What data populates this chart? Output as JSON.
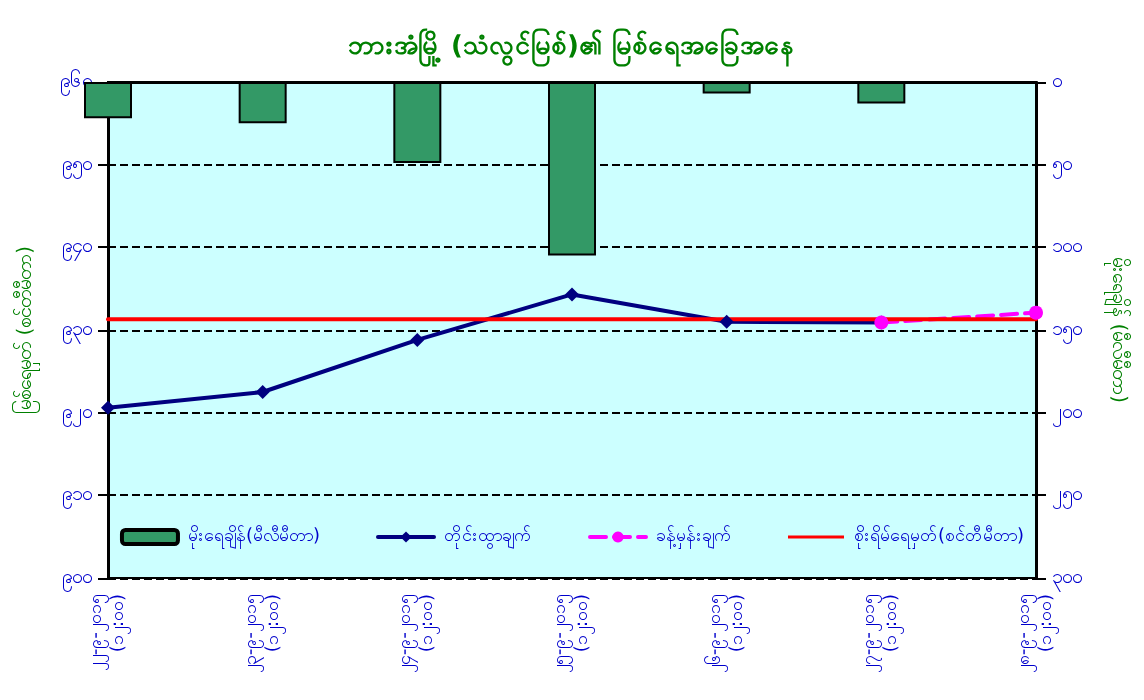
{
  "chart_data": {
    "type": "bar",
    "title": "ဘားအံမြို့ (သံလွင်မြစ်)၏ မြစ်ရေအခြေအနေ",
    "ylabel": "မြစ်ရေမှတ် (စင်တီမီတာ)",
    "y2label": "မိုးရေချိန် (မီလီမီတာ)",
    "categories": [
      "၂၂-၉-၂၀၁၅\n(၁၂:၀၀)",
      "၂၃-၉-၂၀၁၅\n(၁၂:၀၀)",
      "၂၄-၉-၂၀၁၅\n(၁၂:၀၀)",
      "၂၅-၉-၂၀၁၅\n(၁၂:၀၀)",
      "၂၆-၉-၂၀၁၅\n(၁၂:၀၀)",
      "၂၇-၉-၂၀၁၅\n(၁၂:၀၀)",
      "၂၈-၉-၂၀၁၅\n(၁၂:၀၀)"
    ],
    "series": [
      {
        "name": "မိုးရေချိန်(မီလီမီတာ)",
        "axis": "y2",
        "color": "#339966",
        "values": [
          22,
          25,
          49,
          105,
          7,
          13,
          null
        ]
      },
      {
        "name": "တိုင်းထွာချက်",
        "type": "line",
        "color": "#000080",
        "marker": "diamond",
        "line_style": "solid",
        "values": [
          920.6,
          922.5,
          928.8,
          934.3,
          931,
          930.9,
          null
        ]
      },
      {
        "name": "ခန့်မှန်းချက်",
        "type": "line",
        "color": "#ff00ff",
        "marker": "circle",
        "line_style": "dashed",
        "values": [
          null,
          null,
          null,
          null,
          null,
          930.9,
          932.1
        ]
      },
      {
        "name": "စိုးရိမ်ရေမှတ်(စင်တီမီတာ)",
        "type": "line",
        "color": "#ff0000",
        "marker": "none",
        "line_style": "solid",
        "values": [
          931.3,
          931.3,
          931.3,
          931.3,
          931.3,
          931.3,
          931.3
        ]
      }
    ],
    "ylim": [
      900,
      960
    ],
    "yticks": [
      {
        "value": 900,
        "label": "၉၀၀"
      },
      {
        "value": 910,
        "label": "၉၁၀"
      },
      {
        "value": 920,
        "label": "၉၂၀"
      },
      {
        "value": 930,
        "label": "၉၃၀"
      },
      {
        "value": 940,
        "label": "၉၄၀"
      },
      {
        "value": 950,
        "label": "၉၅၀"
      },
      {
        "value": 960,
        "label": "၉၆၀"
      }
    ],
    "y2lim": [
      300,
      0
    ],
    "y2ticks": [
      {
        "value": 0,
        "label": "၀"
      },
      {
        "value": 50,
        "label": "၅၀"
      },
      {
        "value": 100,
        "label": "၁၀၀"
      },
      {
        "value": 150,
        "label": "၁၅၀"
      },
      {
        "value": 200,
        "label": "၂၀၀"
      },
      {
        "value": 250,
        "label": "၂၅၀"
      },
      {
        "value": 300,
        "label": "၃၀၀"
      }
    ],
    "grid": "y",
    "legend": "bottom"
  }
}
